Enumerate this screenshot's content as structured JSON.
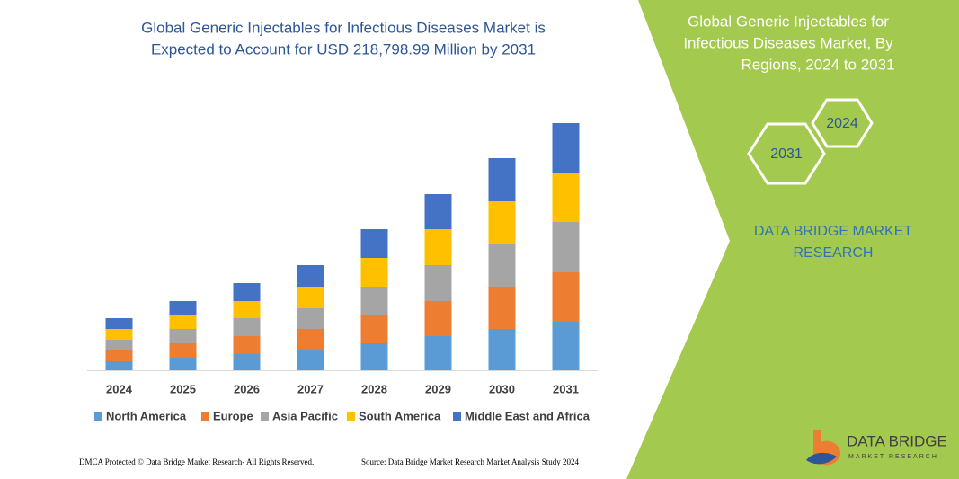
{
  "chart_data": {
    "type": "bar",
    "stacked": true,
    "title": [
      "Global Generic Injectables for Infectious Diseases Market is",
      "Expected to Account for USD 218,798.99 Million by 2031"
    ],
    "categories": [
      "2024",
      "2025",
      "2026",
      "2027",
      "2028",
      "2029",
      "2030",
      "2031"
    ],
    "series": [
      {
        "name": "North America",
        "color": "#5b9bd5",
        "values": [
          10,
          14,
          18,
          22,
          30,
          38,
          46,
          54
        ]
      },
      {
        "name": "Europe",
        "color": "#ed7d31",
        "values": [
          12,
          16,
          20,
          24,
          32,
          39,
          47,
          55
        ]
      },
      {
        "name": "Asia Pacific",
        "color": "#a5a5a5",
        "values": [
          12,
          16,
          20,
          23,
          31,
          40,
          48,
          56
        ]
      },
      {
        "name": "South America",
        "color": "#ffc000",
        "values": [
          12,
          16,
          19,
          24,
          32,
          40,
          47,
          55
        ]
      },
      {
        "name": "Middle East and Africa",
        "color": "#4472c4",
        "values": [
          12,
          15,
          20,
          24,
          32,
          39,
          48,
          55
        ]
      }
    ]
  },
  "panel": {
    "title": [
      "Global Generic Injectables for",
      "Infectious Diseases Market, By",
      "Regions, 2024 to 2031"
    ],
    "hexagons": [
      "2031",
      "2024"
    ],
    "brand": [
      "DATA BRIDGE MARKET",
      "RESEARCH"
    ]
  },
  "footer": {
    "left": "DMCA Protected © Data Bridge Market Research-  All Rights Reserved.",
    "right": "Source: Data Bridge Market Research  Market Analysis Study 2024"
  },
  "logo": {
    "name": "DATA BRIDGE",
    "tagline": "MARKET RESEARCH"
  }
}
